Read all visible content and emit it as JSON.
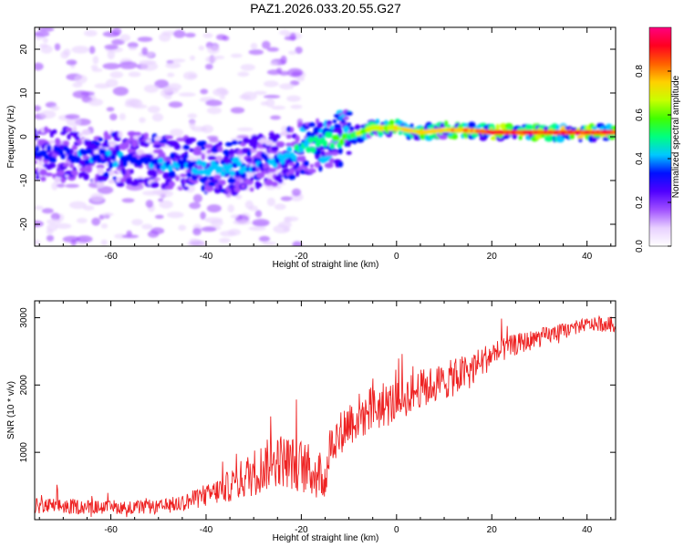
{
  "title": "PAZ1.2026.033.20.55.G27",
  "chart_data": [
    {
      "type": "heatmap",
      "xlabel": "Height of straight line (km)",
      "ylabel": "Frequency (Hz)",
      "xlim": [
        -76,
        46
      ],
      "ylim": [
        -25,
        25
      ],
      "xticks": [
        -60,
        -40,
        -20,
        0,
        20,
        40
      ],
      "xtick_labels": [
        "-60",
        "-40",
        "-20",
        "0",
        "20",
        "40"
      ],
      "yticks": [
        -20,
        -10,
        0,
        10,
        20
      ],
      "ytick_labels": [
        "-20",
        "-10",
        "0",
        "10",
        "20"
      ],
      "colorbar": {
        "label": "Normalized spectral amplitude",
        "range": [
          0,
          1
        ],
        "ticks": [
          0.0,
          0.2,
          0.4,
          0.6,
          0.8
        ],
        "tick_labels": [
          "0.0",
          "0.2",
          "0.4",
          "0.6",
          "0.8"
        ],
        "colors": [
          "#ffffff",
          "#e8d0ff",
          "#a050ff",
          "#5000ff",
          "#0010ff",
          "#00c8ff",
          "#00ff80",
          "#40ff00",
          "#c8ff00",
          "#ffd000",
          "#ff6000",
          "#ff0020",
          "#ff0080"
        ]
      },
      "ridge": {
        "x": [
          -75,
          -70,
          -65,
          -60,
          -55,
          -50,
          -45,
          -40,
          -35,
          -30,
          -25,
          -20,
          -15,
          -10,
          -5,
          0,
          5,
          10,
          15,
          20,
          25,
          30,
          35,
          40,
          46
        ],
        "freq": [
          -4,
          -4,
          -4.5,
          -5,
          -5,
          -5.5,
          -6,
          -7,
          -7,
          -6,
          -5,
          -3,
          -1,
          0,
          2,
          2,
          1,
          1.5,
          1.5,
          1,
          1,
          1,
          1,
          1,
          1
        ],
        "amplitude": [
          0.35,
          0.35,
          0.4,
          0.4,
          0.35,
          0.4,
          0.4,
          0.45,
          0.45,
          0.4,
          0.4,
          0.5,
          0.55,
          0.6,
          0.7,
          0.75,
          0.85,
          0.8,
          0.85,
          0.95,
          0.95,
          0.95,
          0.95,
          0.95,
          0.95
        ]
      }
    },
    {
      "type": "line",
      "xlabel": "Height of straight line (km)",
      "ylabel": "SNR (10 * v/v)",
      "xlim": [
        -76,
        46
      ],
      "ylim": [
        0,
        3250
      ],
      "xticks": [
        -60,
        -40,
        -20,
        0,
        20,
        40
      ],
      "xtick_labels": [
        "-60",
        "-40",
        "-20",
        "0",
        "20",
        "40"
      ],
      "yticks": [
        1000,
        2000,
        3000
      ],
      "ytick_labels": [
        "1000",
        "2000",
        "3000"
      ],
      "color": "#ee2222",
      "series": [
        {
          "name": "SNR",
          "x": [
            -76,
            -70,
            -60,
            -50,
            -45,
            -40,
            -35,
            -30,
            -25,
            -20,
            -15,
            -14,
            -10,
            -5,
            0,
            5,
            10,
            15,
            20,
            25,
            30,
            35,
            40,
            46
          ],
          "y": [
            200,
            200,
            180,
            180,
            250,
            350,
            500,
            700,
            900,
            800,
            600,
            1100,
            1450,
            1650,
            1750,
            1950,
            2050,
            2200,
            2450,
            2600,
            2700,
            2800,
            2900,
            2900
          ],
          "spread": [
            150,
            150,
            120,
            130,
            160,
            200,
            300,
            450,
            500,
            500,
            450,
            350,
            450,
            450,
            400,
            350,
            350,
            350,
            250,
            200,
            180,
            150,
            120,
            150
          ]
        }
      ]
    }
  ]
}
